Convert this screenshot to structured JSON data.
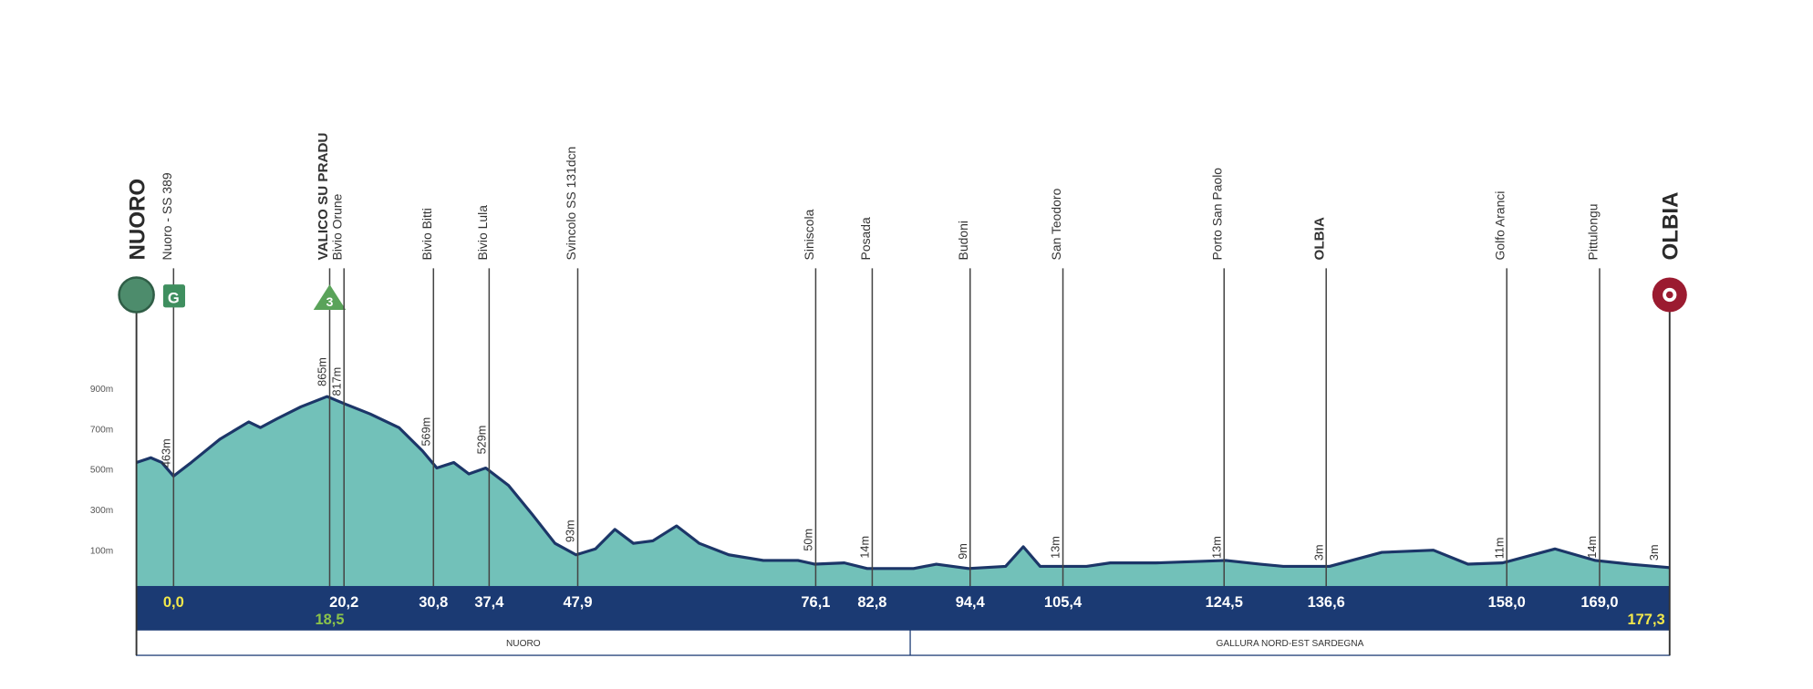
{
  "chart_data": {
    "type": "elevation-profile",
    "xlim": [
      -4.4,
      177.3
    ],
    "ylim": [
      0,
      900
    ],
    "yticks": [
      {
        "value": 900,
        "label": "900m"
      },
      {
        "value": 700,
        "label": "700m"
      },
      {
        "value": 500,
        "label": "500m"
      },
      {
        "value": 300,
        "label": "300m"
      },
      {
        "value": 100,
        "label": "100m"
      }
    ],
    "grid": false,
    "fill_color": "#72c1b9",
    "line_color": "#1c3668",
    "band_color": "#1b3a73",
    "start": {
      "name": "NUORO",
      "color": "#4d8c6c"
    },
    "finish": {
      "name": "OLBIA",
      "km": 177.3,
      "km_label": "177,3",
      "km_color": "#f2e84b",
      "altitude": 3,
      "altitude_label": "3m",
      "color": "#9b1b30"
    },
    "waypoints": [
      {
        "name": "Nuoro - SS 389",
        "km": 0,
        "km_label": "0,0",
        "km_color": "#f2e84b",
        "altitude": 463,
        "altitude_label": "463m",
        "icon": "sprint",
        "icon_label": "G"
      },
      {
        "name": "VALICO SU PRADU",
        "km": 18.5,
        "km_label": "18,5",
        "km_color": "#8bc34a",
        "km_row": 2,
        "altitude": 865,
        "altitude_label": "865m",
        "bold": true,
        "icon": "kom",
        "icon_label": "3"
      },
      {
        "name": "Bivio Orune",
        "km": 20.2,
        "km_label": "20,2",
        "altitude": 817,
        "altitude_label": "817m"
      },
      {
        "name": "Bivio Bitti",
        "km": 30.8,
        "km_label": "30,8",
        "altitude": 569,
        "altitude_label": "569m"
      },
      {
        "name": "Bivio Lula",
        "km": 37.4,
        "km_label": "37,4",
        "altitude": 529,
        "altitude_label": "529m"
      },
      {
        "name": "Svincolo SS 131dcn",
        "km": 47.9,
        "km_label": "47,9",
        "altitude": 93,
        "altitude_label": "93m"
      },
      {
        "name": "Siniscola",
        "km": 76.1,
        "km_label": "76,1",
        "altitude": 50,
        "altitude_label": "50m"
      },
      {
        "name": "Posada",
        "km": 82.8,
        "km_label": "82,8",
        "altitude": 14,
        "altitude_label": "14m"
      },
      {
        "name": "Budoni",
        "km": 94.4,
        "km_label": "94,4",
        "altitude": 9,
        "altitude_label": "9m"
      },
      {
        "name": "San Teodoro",
        "km": 105.4,
        "km_label": "105,4",
        "altitude": 13,
        "altitude_label": "13m"
      },
      {
        "name": "Porto San Paolo",
        "km": 124.5,
        "km_label": "124,5",
        "altitude": 13,
        "altitude_label": "13m"
      },
      {
        "name": "OLBIA",
        "km": 136.6,
        "km_label": "136,6",
        "altitude": 3,
        "altitude_label": "3m",
        "bold": true
      },
      {
        "name": "Golfo Aranci",
        "km": 158.0,
        "km_label": "158,0",
        "altitude": 11,
        "altitude_label": "11m"
      },
      {
        "name": "Pittulongu",
        "km": 169.0,
        "km_label": "169,0",
        "altitude": 14,
        "altitude_label": "14m"
      }
    ],
    "profile": {
      "km": [
        -4.4,
        -2.7,
        -1.4,
        0,
        2.1,
        5.5,
        8.9,
        10.3,
        12.3,
        15.1,
        18.2,
        20.5,
        23.3,
        26.7,
        29.5,
        31.2,
        33.2,
        35.0,
        37.0,
        39.7,
        42.5,
        45.2,
        47.7,
        50.0,
        52.3,
        54.5,
        56.8,
        59.6,
        62.3,
        65.8,
        69.9,
        74.0,
        76.0,
        79.5,
        82.2,
        87.7,
        90.4,
        94.2,
        98.6,
        100.7,
        102.7,
        108.2,
        111.0,
        116.4,
        124.7,
        128.8,
        131.5,
        137.0,
        143.2,
        149.3,
        153.4,
        157.5,
        163.7,
        168.5,
        172.6,
        177.3
      ],
      "elevation": [
        534,
        557,
        534,
        466,
        534,
        649,
        734,
        706,
        751,
        809,
        860,
        820,
        774,
        706,
        591,
        506,
        534,
        477,
        506,
        420,
        277,
        134,
        77,
        106,
        203,
        134,
        146,
        220,
        134,
        77,
        49,
        49,
        31,
        37,
        9,
        9,
        31,
        9,
        20,
        117,
        20,
        20,
        37,
        37,
        49,
        31,
        20,
        20,
        89,
        100,
        31,
        37,
        106,
        49,
        31,
        14
      ]
    },
    "regions": [
      {
        "name": "NUORO"
      },
      {
        "name": "GALLURA NORD-EST SARDEGNA"
      }
    ],
    "region_boundary_km": 87.3
  }
}
